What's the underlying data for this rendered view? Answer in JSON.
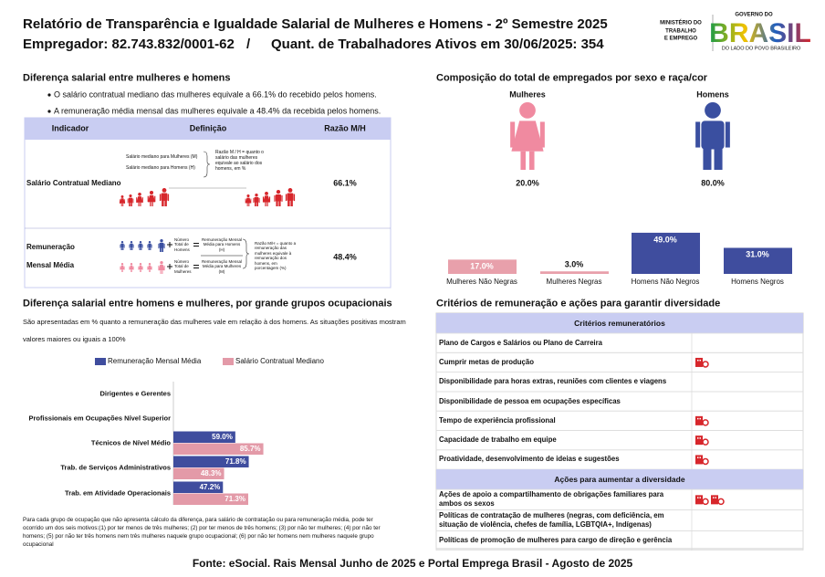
{
  "header": {
    "title": "Relatório de Transparência e Igualdade Salarial de Mulheres e Homens - 2º Semestre 2025",
    "employer": "Empregador: 82.743.832/0001-62",
    "separator": "/",
    "workers": "Quant. de Trabalhadores Ativos em 30/06/2025: 354",
    "logo": {
      "ministry": [
        "MINISTÉRIO DO",
        "TRABALHO",
        "E EMPREGO"
      ],
      "government": "GOVERNO DO",
      "country": "BRASIL",
      "slogan": "DO LADO DO POVO BRASILEIRO"
    }
  },
  "pay_gap": {
    "title": "Diferença salarial entre mulheres e homens",
    "bullets": [
      "O salário contratual mediano das mulheres equivale a 66.1% do recebido pelos homens.",
      "A remuneração média mensal das mulheres equivale a 48.4% da recebida pelos homens."
    ],
    "table": {
      "headers": [
        "Indicador",
        "Definição",
        "Razão M/H"
      ],
      "rows": [
        {
          "indicator": "Salário Contratual Mediano",
          "definition": [
            "Salário mediano para Mulheres (M)",
            "Salário mediano para Homens (H)",
            "Razão M / H = quanto o salário das mulheres equivale ao salário dos homens, em %"
          ],
          "ratio": "66.1%"
        },
        {
          "indicator": "Remuneração Mensal Média",
          "definition": [
            "Número Total de Homens",
            "Remuneração Mensal Média para Homens (H)",
            "Número Total de Mulheres",
            "Remuneração Mensal Média para Mulheres (M)",
            "Razão M/H = quanto a remuneração das mulheres equivale à remuneração dos homens, em porcentagem (%)"
          ],
          "ratio": "48.4%"
        }
      ]
    }
  },
  "composition": {
    "title": "Composição do total de empregados por sexo e raça/cor",
    "sex": [
      {
        "label": "Mulheres",
        "share": "20.0%",
        "color": "#f08aa0"
      },
      {
        "label": "Homens",
        "share": "80.0%",
        "color": "#3a4fa0"
      }
    ],
    "race_chart": {
      "type": "bar",
      "categories": [
        "Mulheres Não Negras",
        "Mulheres Negras",
        "Homens Não Negros",
        "Homens Negros"
      ],
      "values": [
        17.0,
        3.0,
        49.0,
        31.0
      ],
      "value_labels": [
        "17.0%",
        "3.0%",
        "49.0%",
        "31.0%"
      ],
      "colors": [
        "#e8a0ab",
        "#e8a0ab",
        "#3f4d9e",
        "#3f4d9e"
      ]
    }
  },
  "occupations": {
    "title": "Diferença salarial entre homens e mulheres, por grande grupos ocupacionais",
    "note": "São apresentadas em % quanto a remuneração das mulheres vale em relação à dos homens. As situações positivas mostram valores maiores ou iguais a 100%",
    "chart": {
      "type": "barh",
      "categories": [
        "Dirigentes e Gerentes",
        "Profissionais em Ocupações Nível Superior",
        "Técnicos de Nível Médio",
        "Trab. de Serviços Administrativos",
        "Trab. em Atividade Operacionais"
      ],
      "series": [
        {
          "name": "Remuneração Mensal Média",
          "color": "#3f4d9e",
          "values": [
            null,
            null,
            59.0,
            71.8,
            47.2
          ],
          "value_labels": [
            null,
            null,
            "59.0%",
            "71.8%",
            "47.2%"
          ]
        },
        {
          "name": "Salário Contratual Mediano",
          "color": "#e39aa8",
          "values": [
            null,
            null,
            85.7,
            48.3,
            71.3
          ],
          "value_labels": [
            null,
            null,
            "85.7%",
            "48.3%",
            "71.3%"
          ]
        }
      ]
    },
    "footnote": "Para cada grupo de ocupação que não apresenta cálculo da diferença, para salário de contratação ou para remuneração média, pode ter ocorrido um dos seis motivos:(1) por ter menos de três mulheres; (2) por ter menos de três homens; (3) por não ter mulheres; (4) por não ter homens; (5) por não ter três homens nem três mulheres naquele grupo ocupacional; (6) por não ter homens nem mulheres naquele grupo ocupacional"
  },
  "criteria": {
    "title": "Critérios de remuneração e ações para garantir diversidade",
    "groups": [
      {
        "heading": "Critérios remuneratórios",
        "rows": [
          {
            "text": "Plano de Cargos e Salários ou Plano de Carreira",
            "icons": 0
          },
          {
            "text": "Cumprir metas de produção",
            "icons": 1
          },
          {
            "text": "Disponibilidade para horas extras, reuniões com clientes e viagens",
            "icons": 0
          },
          {
            "text": "Disponibilidade de pessoa em ocupações específicas",
            "icons": 0
          },
          {
            "text": "Tempo de experiência profissional",
            "icons": 1
          },
          {
            "text": "Capacidade de trabalho em equipe",
            "icons": 1
          },
          {
            "text": "Proatividade, desenvolvimento de ideias e sugestões",
            "icons": 1
          }
        ]
      },
      {
        "heading": "Ações para aumentar a diversidade",
        "rows": [
          {
            "text": "Ações de apoio a compartilhamento de obrigações familiares para ambos os sexos",
            "icons": 2
          },
          {
            "text": "Políticas de contratação de mulheres (negras, com deficiência, em situação de violência, chefes de família, LGBTQIA+, Indígenas)",
            "icons": 0
          },
          {
            "text": "Políticas de promoção de mulheres para cargo de direção e gerência",
            "icons": 0
          }
        ]
      }
    ]
  },
  "footer": "Fonte: eSocial. Rais Mensal Junho de 2025 e Portal Emprega Brasil - Agosto de 2025"
}
